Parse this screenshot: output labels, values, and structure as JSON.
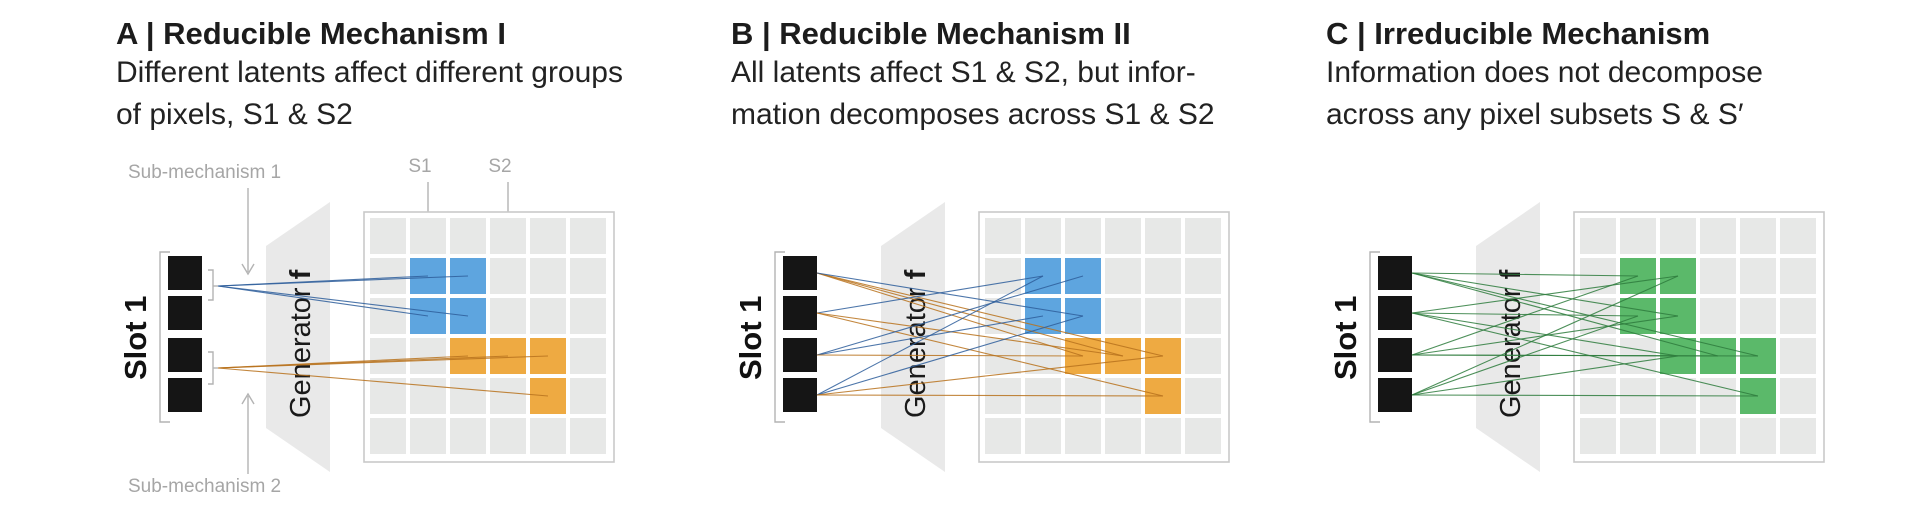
{
  "colors": {
    "latent": "#151515",
    "generator": "#e9e9e9",
    "grid_frame": "#c9c9c9",
    "cell": "#e7e8e7",
    "blue": "#5ea5df",
    "orange": "#eeaa42",
    "green": "#5bb96a",
    "annotation": "#a6a6a6",
    "line_blue": "#2f5f9c",
    "line_orange": "#b9731e",
    "line_green": "#2f7d3e"
  },
  "panels": [
    {
      "id": "A",
      "title": "A | Reducible Mechanism I",
      "subtitle": "Different latents affect different groups\nof pixels, S1 & S2",
      "slot_label": "Slot 1",
      "generator_label": "Generator ",
      "generator_symbol": "f",
      "annotations": {
        "sub_mechanism_1": "Sub-mechanism 1",
        "sub_mechanism_2": "Sub-mechanism 2",
        "s1": "S1",
        "s2": "S2"
      },
      "cells": [
        {
          "row": 1,
          "col": 1,
          "color": "blue"
        },
        {
          "row": 1,
          "col": 2,
          "color": "blue"
        },
        {
          "row": 2,
          "col": 1,
          "color": "blue"
        },
        {
          "row": 2,
          "col": 2,
          "color": "blue"
        },
        {
          "row": 3,
          "col": 2,
          "color": "orange"
        },
        {
          "row": 3,
          "col": 3,
          "color": "orange"
        },
        {
          "row": 3,
          "col": 4,
          "color": "orange"
        },
        {
          "row": 4,
          "col": 4,
          "color": "orange"
        }
      ],
      "connections": [
        {
          "from": "bracket1",
          "to": [
            1,
            1
          ],
          "color": "line_blue"
        },
        {
          "from": "bracket1",
          "to": [
            1,
            2
          ],
          "color": "line_blue"
        },
        {
          "from": "bracket1",
          "to": [
            2,
            1
          ],
          "color": "line_blue"
        },
        {
          "from": "bracket1",
          "to": [
            2,
            2
          ],
          "color": "line_blue"
        },
        {
          "from": "bracket2",
          "to": [
            3,
            2
          ],
          "color": "line_orange"
        },
        {
          "from": "bracket2",
          "to": [
            3,
            3
          ],
          "color": "line_orange"
        },
        {
          "from": "bracket2",
          "to": [
            3,
            4
          ],
          "color": "line_orange"
        },
        {
          "from": "bracket2",
          "to": [
            4,
            4
          ],
          "color": "line_orange"
        }
      ]
    },
    {
      "id": "B",
      "title": "B | Reducible Mechanism II",
      "subtitle": "All latents affect S1 & S2, but infor-\nmation decomposes across S1 & S2",
      "slot_label": "Slot 1",
      "generator_label": "Generator ",
      "generator_symbol": "f",
      "cells": [
        {
          "row": 1,
          "col": 1,
          "color": "blue"
        },
        {
          "row": 1,
          "col": 2,
          "color": "blue"
        },
        {
          "row": 2,
          "col": 1,
          "color": "blue"
        },
        {
          "row": 2,
          "col": 2,
          "color": "blue"
        },
        {
          "row": 3,
          "col": 2,
          "color": "orange"
        },
        {
          "row": 3,
          "col": 3,
          "color": "orange"
        },
        {
          "row": 3,
          "col": 4,
          "color": "orange"
        },
        {
          "row": 4,
          "col": 4,
          "color": "orange"
        }
      ],
      "connections": [
        {
          "from": 0,
          "to": [
            3,
            2
          ],
          "color": "line_orange"
        },
        {
          "from": 0,
          "to": [
            3,
            3
          ],
          "color": "line_orange"
        },
        {
          "from": 0,
          "to": [
            3,
            4
          ],
          "color": "line_orange"
        },
        {
          "from": 0,
          "to": [
            2,
            2
          ],
          "color": "line_blue"
        },
        {
          "from": 1,
          "to": [
            1,
            1
          ],
          "color": "line_blue"
        },
        {
          "from": 1,
          "to": [
            3,
            3
          ],
          "color": "line_orange"
        },
        {
          "from": 1,
          "to": [
            4,
            4
          ],
          "color": "line_orange"
        },
        {
          "from": 2,
          "to": [
            1,
            2
          ],
          "color": "line_blue"
        },
        {
          "from": 2,
          "to": [
            2,
            1
          ],
          "color": "line_blue"
        },
        {
          "from": 2,
          "to": [
            3,
            2
          ],
          "color": "line_orange"
        },
        {
          "from": 3,
          "to": [
            1,
            1
          ],
          "color": "line_blue"
        },
        {
          "from": 3,
          "to": [
            2,
            2
          ],
          "color": "line_blue"
        },
        {
          "from": 3,
          "to": [
            3,
            4
          ],
          "color": "line_orange"
        },
        {
          "from": 3,
          "to": [
            4,
            4
          ],
          "color": "line_orange"
        }
      ]
    },
    {
      "id": "C",
      "title": "C | Irreducible Mechanism",
      "subtitle": "Information does not decompose\nacross any pixel subsets S & S′",
      "slot_label": "Slot 1",
      "generator_label": "Generator ",
      "generator_symbol": "f",
      "cells": [
        {
          "row": 1,
          "col": 1,
          "color": "green"
        },
        {
          "row": 1,
          "col": 2,
          "color": "green"
        },
        {
          "row": 2,
          "col": 1,
          "color": "green"
        },
        {
          "row": 2,
          "col": 2,
          "color": "green"
        },
        {
          "row": 3,
          "col": 2,
          "color": "green"
        },
        {
          "row": 3,
          "col": 3,
          "color": "green"
        },
        {
          "row": 3,
          "col": 4,
          "color": "green"
        },
        {
          "row": 4,
          "col": 4,
          "color": "green"
        }
      ],
      "connections": [
        {
          "from": 0,
          "to": [
            1,
            1
          ],
          "color": "line_green"
        },
        {
          "from": 0,
          "to": [
            2,
            2
          ],
          "color": "line_green"
        },
        {
          "from": 0,
          "to": [
            3,
            3
          ],
          "color": "line_green"
        },
        {
          "from": 0,
          "to": [
            3,
            4
          ],
          "color": "line_green"
        },
        {
          "from": 1,
          "to": [
            1,
            2
          ],
          "color": "line_green"
        },
        {
          "from": 1,
          "to": [
            2,
            1
          ],
          "color": "line_green"
        },
        {
          "from": 1,
          "to": [
            3,
            2
          ],
          "color": "line_green"
        },
        {
          "from": 1,
          "to": [
            4,
            4
          ],
          "color": "line_green"
        },
        {
          "from": 2,
          "to": [
            1,
            1
          ],
          "color": "line_green"
        },
        {
          "from": 2,
          "to": [
            2,
            2
          ],
          "color": "line_green"
        },
        {
          "from": 2,
          "to": [
            3,
            3
          ],
          "color": "line_green"
        },
        {
          "from": 2,
          "to": [
            3,
            4
          ],
          "color": "line_green"
        },
        {
          "from": 3,
          "to": [
            1,
            2
          ],
          "color": "line_green"
        },
        {
          "from": 3,
          "to": [
            2,
            1
          ],
          "color": "line_green"
        },
        {
          "from": 3,
          "to": [
            3,
            2
          ],
          "color": "line_green"
        },
        {
          "from": 3,
          "to": [
            4,
            4
          ],
          "color": "line_green"
        }
      ]
    }
  ]
}
